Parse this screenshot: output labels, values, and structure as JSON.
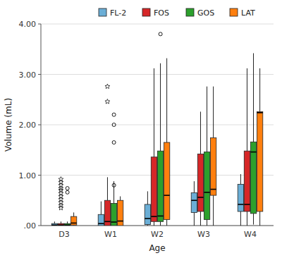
{
  "chart_data": {
    "type": "box",
    "xlabel": "Age",
    "ylabel": "Volume (mL)",
    "categories": [
      "D3",
      "W1",
      "W2",
      "W3",
      "W4"
    ],
    "series": [
      {
        "name": "FL-2",
        "color": "#6baed6",
        "whislo": [
          0.0,
          0.0,
          0.0,
          0.0,
          0.0
        ],
        "q1": [
          0.0,
          0.0,
          0.02,
          0.26,
          0.28
        ],
        "med": [
          0.01,
          0.04,
          0.14,
          0.5,
          0.42
        ],
        "q3": [
          0.04,
          0.22,
          0.42,
          0.65,
          0.82
        ],
        "whishi": [
          0.08,
          0.48,
          0.68,
          0.88,
          1.02
        ]
      },
      {
        "name": "FOS",
        "color": "#d62728",
        "whislo": [
          0.0,
          0.0,
          0.0,
          0.0,
          0.0
        ],
        "q1": [
          0.0,
          0.0,
          0.08,
          0.28,
          0.28
        ],
        "med": [
          0.01,
          0.08,
          0.18,
          0.56,
          0.42
        ],
        "q3": [
          0.04,
          0.5,
          1.36,
          1.42,
          1.48
        ],
        "whishi": [
          0.08,
          0.96,
          3.12,
          2.26,
          3.12
        ]
      },
      {
        "name": "GOS",
        "color": "#2ca02c",
        "whislo": [
          0.0,
          0.0,
          0.0,
          0.0,
          0.02
        ],
        "q1": [
          0.0,
          0.0,
          0.08,
          0.12,
          0.24
        ],
        "med": [
          0.01,
          0.07,
          0.19,
          0.66,
          1.46
        ],
        "q3": [
          0.04,
          0.44,
          1.48,
          1.46,
          1.66
        ],
        "whishi": [
          0.08,
          0.88,
          3.22,
          2.76,
          3.42
        ]
      },
      {
        "name": "LAT",
        "color": "#ff7f0e",
        "whislo": [
          0.0,
          0.0,
          0.0,
          0.0,
          0.0
        ],
        "q1": [
          0.01,
          0.0,
          0.12,
          0.6,
          0.28
        ],
        "med": [
          0.05,
          0.09,
          0.6,
          0.72,
          2.24
        ],
        "q3": [
          0.18,
          0.5,
          1.65,
          1.74,
          2.26
        ],
        "whishi": [
          0.26,
          0.58,
          3.32,
          2.76,
          3.12
        ]
      }
    ],
    "outliers": [
      {
        "marker": "circle",
        "values": [
          [
            0.74,
            0.66
          ],
          [
            1.65,
            2.0,
            2.2,
            0.8
          ],
          [
            3.8
          ],
          [],
          []
        ]
      },
      {
        "marker": "star",
        "values": [
          [
            0.92,
            0.86,
            0.8,
            0.74,
            0.7,
            0.64,
            0.58,
            0.52,
            0.46,
            0.4,
            0.35
          ],
          [
            2.76,
            2.46
          ],
          [],
          [],
          []
        ]
      }
    ],
    "ylim": [
      0,
      4.0
    ],
    "yticks": [
      {
        "value": 0.0,
        "label": ".00"
      },
      {
        "value": 1.0,
        "label": "1.00"
      },
      {
        "value": 2.0,
        "label": "2.00"
      },
      {
        "value": 3.0,
        "label": "3.00"
      },
      {
        "value": 4.0,
        "label": "4.00"
      }
    ],
    "grid": true,
    "legend": "upper right"
  }
}
